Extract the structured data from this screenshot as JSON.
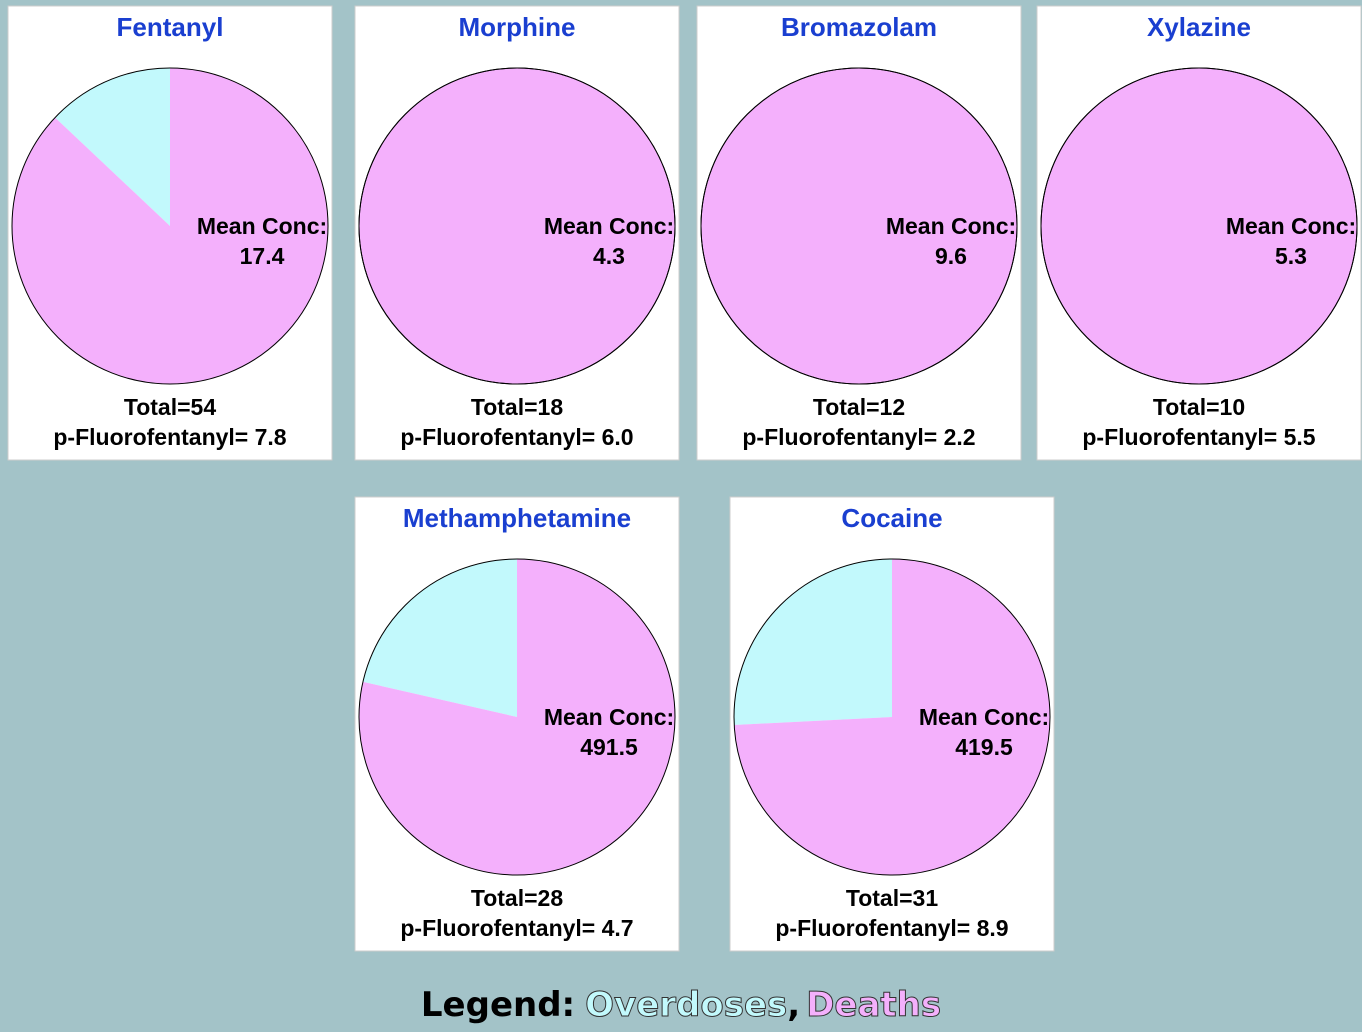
{
  "chart_data": [
    {
      "type": "pie",
      "title": "Fentanyl",
      "values": [
        7,
        47
      ],
      "annotation": [
        "Mean Conc:",
        "17.4"
      ],
      "footer": [
        "Total=54",
        "p-Fluorofentanyl= 7.8"
      ]
    },
    {
      "type": "pie",
      "title": "Morphine",
      "values": [
        0,
        18
      ],
      "annotation": [
        "Mean Conc:",
        "4.3"
      ],
      "footer": [
        "Total=18",
        "p-Fluorofentanyl= 6.0"
      ]
    },
    {
      "type": "pie",
      "title": "Bromazolam",
      "values": [
        0,
        12
      ],
      "annotation": [
        "Mean Conc:",
        "9.6"
      ],
      "footer": [
        "Total=12",
        "p-Fluorofentanyl= 2.2"
      ]
    },
    {
      "type": "pie",
      "title": "Xylazine",
      "values": [
        0,
        10
      ],
      "annotation": [
        "Mean Conc:",
        "5.3"
      ],
      "footer": [
        "Total=10",
        "p-Fluorofentanyl= 5.5"
      ]
    },
    {
      "type": "pie",
      "title": "Methamphetamine",
      "values": [
        6,
        22
      ],
      "annotation": [
        "Mean Conc:",
        "491.5"
      ],
      "footer": [
        "Total=28",
        "p-Fluorofentanyl= 4.7"
      ]
    },
    {
      "type": "pie",
      "title": "Cocaine",
      "values": [
        8,
        23
      ],
      "annotation": [
        "Mean Conc:",
        "419.5"
      ],
      "footer": [
        "Total=31",
        "p-Fluorofentanyl= 8.9"
      ]
    }
  ],
  "legend": {
    "label": "Legend:",
    "separator": ",",
    "items": [
      {
        "name": "Overdoses",
        "color": "#c2f9fc"
      },
      {
        "name": "Deaths",
        "color": "#f4b0fc"
      }
    ]
  }
}
